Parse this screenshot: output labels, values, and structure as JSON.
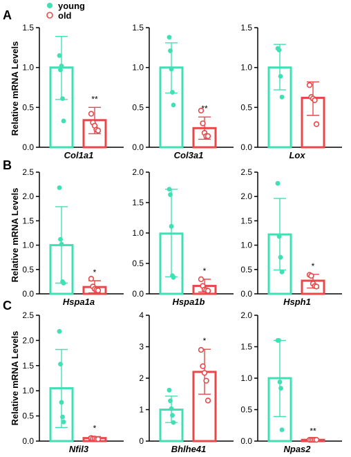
{
  "colors": {
    "young": "#3fe0b4",
    "old": "#e8484a"
  },
  "legend": [
    {
      "label": "young",
      "marker": "filled-circle",
      "color": "#3fe0b4"
    },
    {
      "label": "old",
      "marker": "open-circle",
      "color": "#e8484a"
    }
  ],
  "panel_letters": [
    "A",
    "B",
    "C"
  ],
  "ylabel": "Relative mRNA Levels",
  "chart_data": [
    {
      "type": "bar",
      "row": 0,
      "col": 0,
      "gene": "Col1a1",
      "ylim": [
        0,
        1.5
      ],
      "yticks": [
        "0.0",
        "0.5",
        "1.0",
        "1.5"
      ],
      "tick_values": [
        0,
        0.5,
        1.0,
        1.5
      ],
      "series": [
        {
          "group": "young",
          "mean": 1.0,
          "err": [
            0.6,
            1.39
          ],
          "points": [
            1.15,
            0.97,
            1.02,
            0.61,
            0.33
          ]
        },
        {
          "group": "old",
          "mean": 0.34,
          "err": [
            0.17,
            0.5
          ],
          "points": [
            0.42,
            0.31,
            0.27,
            0.22,
            0.21
          ]
        }
      ],
      "sig": "**"
    },
    {
      "type": "bar",
      "row": 0,
      "col": 1,
      "gene": "Col3a1",
      "ylim": [
        0,
        1.5
      ],
      "yticks": [
        "0.0",
        "0.5",
        "1.0",
        "1.5"
      ],
      "tick_values": [
        0,
        0.5,
        1.0,
        1.5
      ],
      "series": [
        {
          "group": "young",
          "mean": 1.0,
          "err": [
            0.68,
            1.31
          ],
          "points": [
            1.38,
            1.21,
            0.98,
            0.69,
            0.53
          ]
        },
        {
          "group": "old",
          "mean": 0.24,
          "err": [
            0.1,
            0.38
          ],
          "points": [
            0.46,
            0.3,
            0.18,
            0.14,
            0.14
          ]
        }
      ],
      "sig": "**"
    },
    {
      "type": "bar",
      "row": 0,
      "col": 2,
      "gene": "Lox",
      "ylim": [
        0,
        1.5
      ],
      "yticks": [
        "0.0",
        "0.5",
        "1.0",
        "1.5"
      ],
      "tick_values": [
        0,
        0.5,
        1.0,
        1.5
      ],
      "series": [
        {
          "group": "young",
          "mean": 1.0,
          "err": [
            0.72,
            1.29
          ],
          "points": [
            1.24,
            1.22,
            0.89,
            0.63
          ]
        },
        {
          "group": "old",
          "mean": 0.62,
          "err": [
            0.4,
            0.82
          ],
          "points": [
            0.78,
            0.63,
            0.61,
            0.59,
            0.29
          ]
        }
      ],
      "sig": ""
    },
    {
      "type": "bar",
      "row": 1,
      "col": 0,
      "gene": "Hspa1a",
      "ylim": [
        0,
        2.5
      ],
      "yticks": [
        "0.0",
        "0.5",
        "1.0",
        "1.5",
        "2.0",
        "2.5"
      ],
      "tick_values": [
        0,
        0.5,
        1.0,
        1.5,
        2.0,
        2.5
      ],
      "series": [
        {
          "group": "young",
          "mean": 1.0,
          "err": [
            0.22,
            1.79
          ],
          "points": [
            2.18,
            1.12,
            1.02,
            0.25,
            0.22
          ]
        },
        {
          "group": "old",
          "mean": 0.14,
          "err": [
            0.02,
            0.27
          ],
          "points": [
            0.31,
            0.15,
            0.1,
            0.08,
            0.07
          ]
        }
      ],
      "sig": "*"
    },
    {
      "type": "bar",
      "row": 1,
      "col": 1,
      "gene": "Hspa1b",
      "ylim": [
        0,
        2.0
      ],
      "yticks": [
        "0.0",
        "0.5",
        "1.0",
        "1.5",
        "2.0"
      ],
      "tick_values": [
        0,
        0.5,
        1.0,
        1.5,
        2.0
      ],
      "series": [
        {
          "group": "young",
          "mean": 0.99,
          "err": [
            0.28,
            1.72
          ],
          "points": [
            1.72,
            1.63,
            1.11,
            0.3,
            0.27
          ]
        },
        {
          "group": "old",
          "mean": 0.13,
          "err": [
            0.03,
            0.24
          ],
          "points": [
            0.24,
            0.13,
            0.07,
            0.06,
            0.05
          ]
        }
      ],
      "sig": "*"
    },
    {
      "type": "bar",
      "row": 1,
      "col": 2,
      "gene": "Hsph1",
      "ylim": [
        0,
        2.5
      ],
      "yticks": [
        "0.0",
        "0.5",
        "1.0",
        "1.5",
        "2.0",
        "2.5"
      ],
      "tick_values": [
        0,
        0.5,
        1.0,
        1.5,
        2.0,
        2.5
      ],
      "series": [
        {
          "group": "young",
          "mean": 1.22,
          "err": [
            0.49,
            1.96
          ],
          "points": [
            2.27,
            1.18,
            0.75,
            0.45
          ]
        },
        {
          "group": "old",
          "mean": 0.27,
          "err": [
            0.12,
            0.4
          ],
          "points": [
            0.39,
            0.37,
            0.21,
            0.16,
            0.15
          ]
        }
      ],
      "sig": "*"
    },
    {
      "type": "bar",
      "row": 2,
      "col": 0,
      "gene": "Nfil3",
      "ylim": [
        0,
        2.5
      ],
      "yticks": [
        "0.0",
        "0.5",
        "1.0",
        "1.5",
        "2.0",
        "2.5"
      ],
      "tick_values": [
        0,
        0.5,
        1.0,
        1.5,
        2.0,
        2.5
      ],
      "series": [
        {
          "group": "young",
          "mean": 1.05,
          "err": [
            0.27,
            1.82
          ],
          "points": [
            2.18,
            1.53,
            0.77,
            0.48,
            0.38
          ]
        },
        {
          "group": "old",
          "mean": 0.06,
          "err": [
            0.02,
            0.09
          ],
          "points": [
            0.06,
            0.05,
            0.05,
            0.04,
            0.04
          ]
        }
      ],
      "sig": "*"
    },
    {
      "type": "bar",
      "row": 2,
      "col": 1,
      "gene": "Bhlhe41",
      "ylim": [
        0,
        4
      ],
      "yticks": [
        "0",
        "1",
        "2",
        "3",
        "4"
      ],
      "tick_values": [
        0,
        1,
        2,
        3,
        4
      ],
      "series": [
        {
          "group": "young",
          "mean": 1.0,
          "err": [
            0.59,
            1.43
          ],
          "points": [
            1.62,
            1.28,
            1.03,
            0.82,
            0.59
          ]
        },
        {
          "group": "old",
          "mean": 2.2,
          "err": [
            1.49,
            2.92
          ],
          "points": [
            2.9,
            2.38,
            2.17,
            1.92,
            1.29
          ]
        }
      ],
      "sig": "*"
    },
    {
      "type": "bar",
      "row": 2,
      "col": 2,
      "gene": "Npas2",
      "ylim": [
        0,
        2.0
      ],
      "yticks": [
        "0.0",
        "0.5",
        "1.0",
        "1.5",
        "2.0"
      ],
      "tick_values": [
        0,
        0.5,
        1.0,
        1.5,
        2.0
      ],
      "series": [
        {
          "group": "young",
          "mean": 1.0,
          "err": [
            0.39,
            1.6
          ],
          "points": [
            1.6,
            1.6,
            0.94,
            0.84,
            0.18
          ]
        },
        {
          "group": "old",
          "mean": 0.02,
          "err": [
            0.01,
            0.03
          ],
          "points": [
            0.02,
            0.02,
            0.02,
            0.02,
            0.02
          ]
        }
      ],
      "sig": "**"
    }
  ]
}
